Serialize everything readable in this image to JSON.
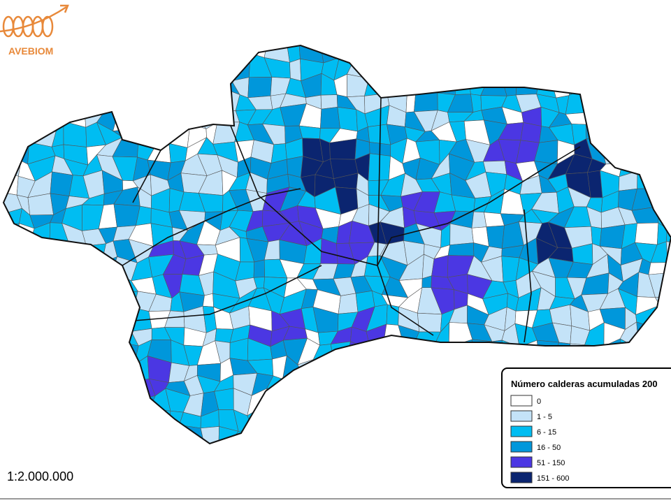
{
  "logo": {
    "text": "AVEBIOM"
  },
  "legend": {
    "title": "Número calderas acumuladas 200",
    "items": [
      {
        "label": "0",
        "color": "#ffffff"
      },
      {
        "label": "1 - 5",
        "color": "#c4e3f8"
      },
      {
        "label": "6 - 15",
        "color": "#00bdf2"
      },
      {
        "label": "16 - 50",
        "color": "#0097db"
      },
      {
        "label": "51 - 150",
        "color": "#4b37e3"
      },
      {
        "label": "151 - 600",
        "color": "#0b2570"
      }
    ]
  },
  "scale": "1:2.000.000"
}
